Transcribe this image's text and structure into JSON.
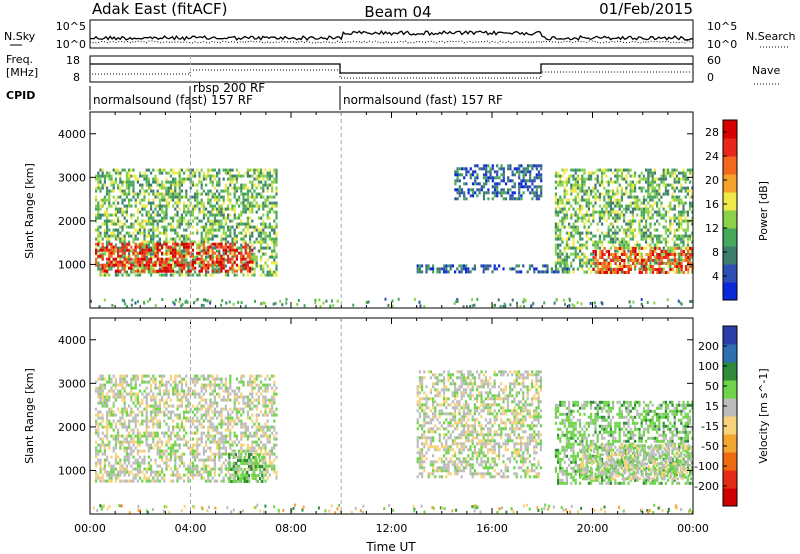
{
  "header": {
    "station": "Adak East (fitACF)",
    "beam": "Beam 04",
    "date": "01/Feb/2015"
  },
  "sky_panel": {
    "left_label": "N.Sky",
    "right_label": "N.Search",
    "left_ticks": [
      "10^5",
      "10^0"
    ],
    "right_ticks": [
      "10^5",
      "10^0"
    ]
  },
  "freq_panel": {
    "left_label_1": "Freq.",
    "left_label_2": "[MHz]",
    "left_ticks": [
      "18",
      "8"
    ],
    "right_label": "Nave",
    "right_ticks": [
      "60",
      "0"
    ]
  },
  "cpid": {
    "label": "CPID",
    "segments": [
      "normalsound (fast) 157 RF",
      "rbsp 200 RF",
      "normalsound (fast) 157 RF"
    ]
  },
  "colors": {
    "power_scale": [
      "#0a2ad8",
      "#2e4fb4",
      "#3f7d6e",
      "#46a85a",
      "#8bd14a",
      "#f2e84a",
      "#f4a22a",
      "#f2681d",
      "#e8261a",
      "#d90000"
    ],
    "velocity_scale": [
      "#2c3fa8",
      "#2f6fb0",
      "#2f8a3a",
      "#6fd44a",
      "#bcbcbc",
      "#f6d37a",
      "#f4a633",
      "#f06a12",
      "#e52c18",
      "#d10000"
    ]
  },
  "chart_data": [
    {
      "type": "heatmap",
      "panel": "power",
      "ylabel": "Slant Range [km]",
      "yticks": [
        "1000",
        "2000",
        "3000",
        "4000"
      ],
      "ylim": [
        0,
        4500
      ],
      "xlim": [
        "00:00",
        "24:00"
      ],
      "colorbar_label": "Power [dB]",
      "colorbar_ticks": [
        "4",
        "8",
        "12",
        "16",
        "20",
        "24",
        "28"
      ],
      "colorbar_range": [
        0,
        30
      ],
      "regions": [
        {
          "t0": 0.2,
          "t1": 7.5,
          "r0": 700,
          "r1": 3200,
          "level": 12
        },
        {
          "t0": 0.2,
          "t1": 6.5,
          "r0": 800,
          "r1": 1500,
          "level": 26
        },
        {
          "t0": 13.0,
          "t1": 19.0,
          "r0": 800,
          "r1": 1000,
          "level": 6
        },
        {
          "t0": 14.5,
          "t1": 18.0,
          "r0": 2500,
          "r1": 3300,
          "level": 6
        },
        {
          "t0": 18.5,
          "t1": 24.0,
          "r0": 800,
          "r1": 3200,
          "level": 12
        },
        {
          "t0": 20.0,
          "t1": 24.0,
          "r0": 800,
          "r1": 1400,
          "level": 24
        }
      ]
    },
    {
      "type": "heatmap",
      "panel": "velocity",
      "ylabel": "Slant Range [km]",
      "yticks": [
        "1000",
        "2000",
        "3000",
        "4000"
      ],
      "ylim": [
        0,
        4500
      ],
      "xlim": [
        "00:00",
        "24:00"
      ],
      "xticks": [
        "00:00",
        "04:00",
        "08:00",
        "12:00",
        "16:00",
        "20:00",
        "00:00"
      ],
      "xlabel": "Time UT",
      "colorbar_label": "Velocity [m s^-1]",
      "colorbar_ticks": [
        "200",
        "100",
        "50",
        "15",
        "-15",
        "-50",
        "-100",
        "-200"
      ],
      "colorbar_range": [
        -250,
        250
      ],
      "regions": [
        {
          "t0": 0.2,
          "t1": 7.5,
          "r0": 700,
          "r1": 3200,
          "level": 0
        },
        {
          "t0": 5.5,
          "t1": 7.0,
          "r0": 700,
          "r1": 1400,
          "level": 40
        },
        {
          "t0": 13.0,
          "t1": 18.0,
          "r0": 800,
          "r1": 3300,
          "level": 0
        },
        {
          "t0": 18.5,
          "t1": 24.0,
          "r0": 700,
          "r1": 2600,
          "level": 30
        },
        {
          "t0": 19.5,
          "t1": 24.0,
          "r0": 800,
          "r1": 1600,
          "level": 0
        }
      ]
    }
  ]
}
